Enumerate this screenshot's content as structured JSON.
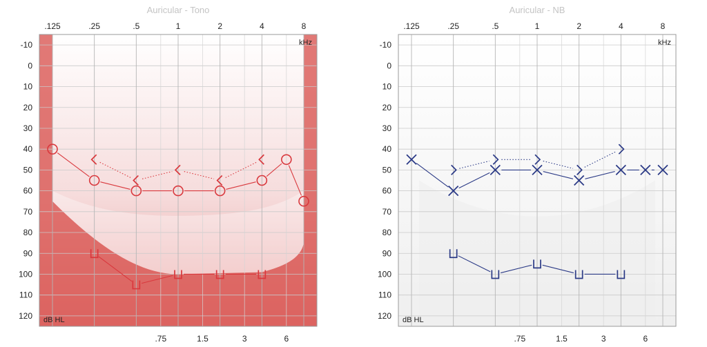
{
  "chart_data": [
    {
      "type": "line",
      "title": "Auricular - Tono",
      "xlabel": "kHz",
      "ylabel": "dB HL",
      "ylim": [
        -15,
        125
      ],
      "y_ticks": [
        "-10",
        "0",
        "10",
        "20",
        "30",
        "40",
        "50",
        "60",
        "70",
        "80",
        "90",
        "100",
        "110",
        "120"
      ],
      "x_ticks_top": [
        ".125",
        ".25",
        ".5",
        "1",
        "2",
        "4",
        "8"
      ],
      "x_ticks_bottom": [
        ".75",
        "1.5",
        "3",
        "6"
      ],
      "color": "#d9383d",
      "shading": "#d9534f",
      "series": [
        {
          "marker": "circle",
          "line": "solid",
          "points": [
            {
              "x": ".125",
              "y": 40
            },
            {
              "x": ".25",
              "y": 55
            },
            {
              "x": ".5",
              "y": 60
            },
            {
              "x": "1",
              "y": 60
            },
            {
              "x": "2",
              "y": 60
            },
            {
              "x": "4",
              "y": 55
            },
            {
              "x": "6",
              "y": 45
            },
            {
              "x": "8",
              "y": 65
            }
          ]
        },
        {
          "marker": "bracket-left",
          "line": "dotted",
          "points": [
            {
              "x": ".25",
              "y": 45
            },
            {
              "x": ".5",
              "y": 55
            },
            {
              "x": "1",
              "y": 50
            },
            {
              "x": "2",
              "y": 55
            },
            {
              "x": "4",
              "y": 45
            }
          ]
        },
        {
          "marker": "u-bracket",
          "line": "solid",
          "points": [
            {
              "x": ".25",
              "y": 90
            },
            {
              "x": ".5",
              "y": 105
            },
            {
              "x": "1",
              "y": 100
            },
            {
              "x": "2",
              "y": 100
            },
            {
              "x": "4",
              "y": 100
            }
          ]
        }
      ]
    },
    {
      "type": "line",
      "title": "Auricular - NB",
      "xlabel": "kHz",
      "ylabel": "dB HL",
      "ylim": [
        -15,
        125
      ],
      "y_ticks": [
        "-10",
        "0",
        "10",
        "20",
        "30",
        "40",
        "50",
        "60",
        "70",
        "80",
        "90",
        "100",
        "110",
        "120"
      ],
      "x_ticks_top": [
        ".125",
        ".25",
        ".5",
        "1",
        "2",
        "4",
        "8"
      ],
      "x_ticks_bottom": [
        ".75",
        "1.5",
        "3",
        "6"
      ],
      "color": "#2b3a86",
      "shading": "#ececec",
      "series": [
        {
          "marker": "cross",
          "line": "solid",
          "points": [
            {
              "x": ".125",
              "y": 45
            },
            {
              "x": ".25",
              "y": 60
            },
            {
              "x": ".5",
              "y": 50
            },
            {
              "x": "1",
              "y": 50
            },
            {
              "x": "2",
              "y": 55
            },
            {
              "x": "4",
              "y": 50
            },
            {
              "x": "6",
              "y": 50
            },
            {
              "x": "8",
              "y": 50
            }
          ]
        },
        {
          "marker": "bracket-right",
          "line": "dotted",
          "points": [
            {
              "x": ".25",
              "y": 50
            },
            {
              "x": ".5",
              "y": 45
            },
            {
              "x": "1",
              "y": 45
            },
            {
              "x": "2",
              "y": 50
            },
            {
              "x": "4",
              "y": 40
            }
          ]
        },
        {
          "marker": "u-bracket",
          "line": "solid",
          "points": [
            {
              "x": ".25",
              "y": 90
            },
            {
              "x": ".5",
              "y": 100
            },
            {
              "x": "1",
              "y": 95
            },
            {
              "x": "2",
              "y": 100
            },
            {
              "x": "4",
              "y": 100
            }
          ]
        }
      ]
    }
  ]
}
